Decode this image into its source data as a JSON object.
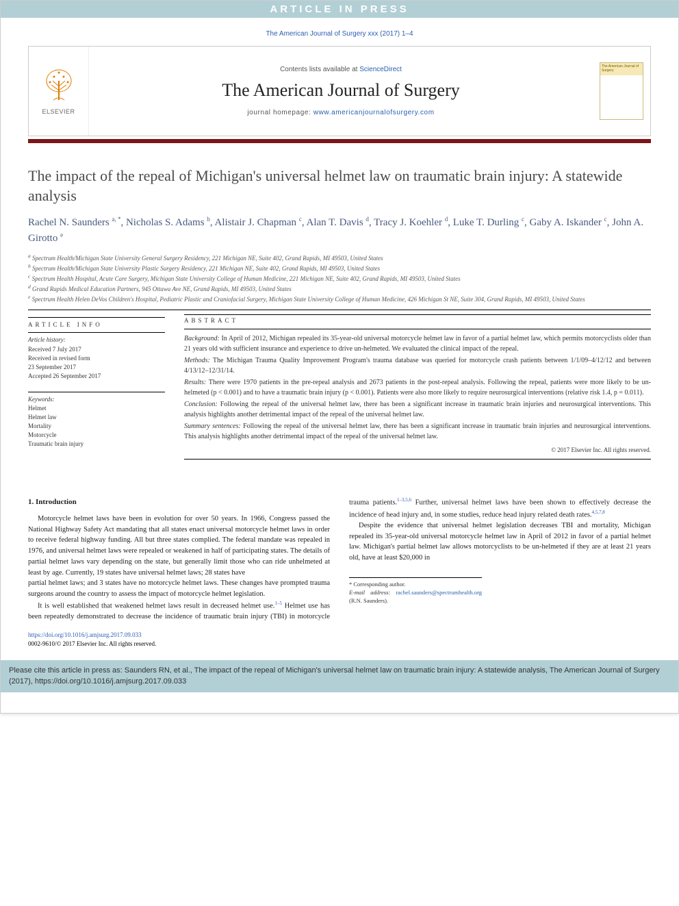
{
  "banner": {
    "text": "ARTICLE IN PRESS"
  },
  "top_citation": "The American Journal of Surgery xxx (2017) 1–4",
  "masthead": {
    "contents_prefix": "Contents lists available at ",
    "contents_link": "ScienceDirect",
    "journal": "The American Journal of Surgery",
    "homepage_prefix": "journal homepage: ",
    "homepage_link": "www.americanjournalofsurgery.com",
    "publisher_label": "ELSEVIER",
    "cover_label": "The American Journal of Surgery"
  },
  "title": "The impact of the repeal of Michigan's universal helmet law on traumatic brain injury: A statewide analysis",
  "authors_html": "Rachel N. Saunders <sup>a, *</sup>, Nicholas S. Adams <sup>b</sup>, Alistair J. Chapman <sup>c</sup>, Alan T. Davis <sup>d</sup>, Tracy J. Koehler <sup>d</sup>, Luke T. Durling <sup>c</sup>, Gaby A. Iskander <sup>c</sup>, John A. Girotto <sup>e</sup>",
  "affiliations": [
    "a Spectrum Health/Michigan State University General Surgery Residency, 221 Michigan NE, Suite 402, Grand Rapids, MI 49503, United States",
    "b Spectrum Health/Michigan State University Plastic Surgery Residency, 221 Michigan NE, Suite 402, Grand Rapids, MI 49503, United States",
    "c Spectrum Health Hospital, Acute Care Surgery, Michigan State University College of Human Medicine, 221 Michigan NE, Suite 402, Grand Rapids, MI 49503, United States",
    "d Grand Rapids Medical Education Partners, 945 Ottawa Ave NE, Grand Rapids, MI 49503, United States",
    "e Spectrum Health Helen DeVos Children's Hospital, Pediatric Plastic and Craniofacial Surgery, Michigan State University College of Human Medicine, 426 Michigan St NE, Suite 304, Grand Rapids, MI 49503, United States"
  ],
  "article_info": {
    "heading": "ARTICLE INFO",
    "history_heading": "Article history:",
    "history": [
      "Received 7 July 2017",
      "Received in revised form",
      "23 September 2017",
      "Accepted 26 September 2017"
    ],
    "keywords_heading": "Keywords:",
    "keywords": [
      "Helmet",
      "Helmet law",
      "Mortality",
      "Motorcycle",
      "Traumatic brain injury"
    ]
  },
  "abstract": {
    "heading": "ABSTRACT",
    "sections": [
      {
        "label": "Background:",
        "text": "In April of 2012, Michigan repealed its 35-year-old universal motorcycle helmet law in favor of a partial helmet law, which permits motorcyclists older than 21 years old with sufficient insurance and experience to drive un-helmeted. We evaluated the clinical impact of the repeal."
      },
      {
        "label": "Methods:",
        "text": "The Michigan Trauma Quality Improvement Program's trauma database was queried for motorcycle crash patients between 1/1/09–4/12/12 and between 4/13/12–12/31/14."
      },
      {
        "label": "Results:",
        "text": "There were 1970 patients in the pre-repeal analysis and 2673 patients in the post-repeal analysis. Following the repeal, patients were more likely to be un-helmeted (p < 0.001) and to have a traumatic brain injury (p < 0.001). Patients were also more likely to require neurosurgical interventions (relative risk 1.4, p = 0.011)."
      },
      {
        "label": "Conclusion:",
        "text": "Following the repeal of the universal helmet law, there has been a significant increase in traumatic brain injuries and neurosurgical interventions. This analysis highlights another detrimental impact of the repeal of the universal helmet law."
      },
      {
        "label": "Summary sentences:",
        "text": "Following the repeal of the universal helmet law, there has been a significant increase in traumatic brain injuries and neurosurgical interventions. This analysis highlights another detrimental impact of the repeal of the universal helmet law."
      }
    ],
    "copyright": "© 2017 Elsevier Inc. All rights reserved."
  },
  "body": {
    "section_heading": "1. Introduction",
    "paragraphs": [
      "Motorcycle helmet laws have been in evolution for over 50 years. In 1966, Congress passed the National Highway Safety Act mandating that all states enact universal motorcycle helmet laws in order to receive federal highway funding. All but three states complied. The federal mandate was repealed in 1976, and universal helmet laws were repealed or weakened in half of participating states. The details of partial helmet laws vary depending on the state, but generally limit those who can ride unhelmeted at least by age. Currently, 19 states have universal helmet laws; 28 states have",
      "partial helmet laws; and 3 states have no motorcycle helmet laws. These changes have prompted trauma surgeons around the country to assess the impact of motorcycle helmet legislation.",
      "It is well established that weakened helmet laws result in decreased helmet use.<sup class=\"ref\">1–5</sup> Helmet use has been repeatedly demonstrated to decrease the incidence of traumatic brain injury (TBI) in motorcycle trauma patients.<sup class=\"ref\">1–3,5,6</sup> Further, universal helmet laws have been shown to effectively decrease the incidence of head injury and, in some studies, reduce head injury related death rates.<sup class=\"ref\">4,5,7,8</sup>",
      "Despite the evidence that universal helmet legislation decreases TBI and mortality, Michigan repealed its 35-year-old universal motorcycle helmet law in April of 2012 in favor of a partial helmet law. Michigan's partial helmet law allows motorcyclists to be un-helmeted if they are at least 21 years old, have at least $20,000 in"
    ]
  },
  "footnote": {
    "corresponding": "* Corresponding author.",
    "email_label": "E-mail address:",
    "email": "rachel.saunders@spectrumhealth.org",
    "email_suffix": " (R.N. Saunders)."
  },
  "doi": {
    "url": "https://doi.org/10.1016/j.amjsurg.2017.09.033",
    "issn_line": "0002-9610/© 2017 Elsevier Inc. All rights reserved."
  },
  "cite_box": "Please cite this article in press as: Saunders RN, et al., The impact of the repeal of Michigan's universal helmet law on traumatic brain injury: A statewide analysis, The American Journal of Surgery (2017), https://doi.org/10.1016/j.amjsurg.2017.09.033",
  "colors": {
    "banner_bg": "#b2cfd5",
    "maroon": "#7c1518",
    "link": "#2a5db0",
    "title_color": "#4a4a4a",
    "author_color": "#4a5a80"
  }
}
